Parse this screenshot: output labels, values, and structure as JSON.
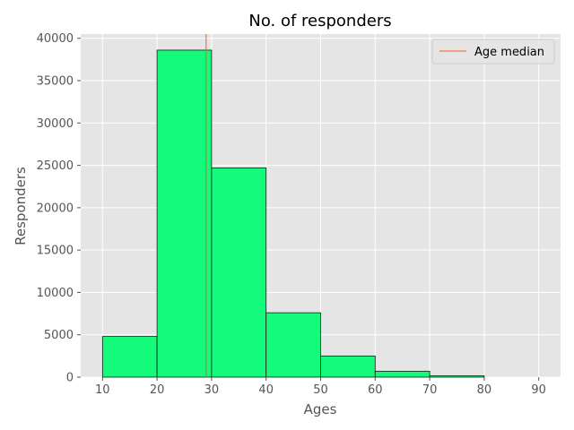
{
  "chart_data": {
    "type": "bar",
    "title": "No. of responders",
    "xlabel": "Ages",
    "ylabel": "Responders",
    "bins": [
      {
        "x0": 10,
        "x1": 20,
        "value": 4800
      },
      {
        "x0": 20,
        "x1": 30,
        "value": 38600
      },
      {
        "x0": 30,
        "x1": 40,
        "value": 24700
      },
      {
        "x0": 40,
        "x1": 50,
        "value": 7600
      },
      {
        "x0": 50,
        "x1": 60,
        "value": 2500
      },
      {
        "x0": 60,
        "x1": 70,
        "value": 700
      },
      {
        "x0": 70,
        "x1": 80,
        "value": 150
      },
      {
        "x0": 80,
        "x1": 90,
        "value": 0
      }
    ],
    "median": {
      "label": "Age median",
      "value": 29
    },
    "xlim": [
      6,
      94
    ],
    "ylim": [
      0,
      40500
    ],
    "xticks": [
      10,
      20,
      30,
      40,
      50,
      60,
      70,
      80,
      90
    ],
    "yticks": [
      0,
      5000,
      10000,
      15000,
      20000,
      25000,
      30000,
      35000,
      40000
    ],
    "grid": true,
    "legend_position": "top-right",
    "colors": {
      "bar_fill": "#14fa7a",
      "bar_edge": "#1a1a1a",
      "median_line": "#ff5533",
      "plot_background": "#e5e5e5",
      "grid": "#ffffff"
    }
  }
}
